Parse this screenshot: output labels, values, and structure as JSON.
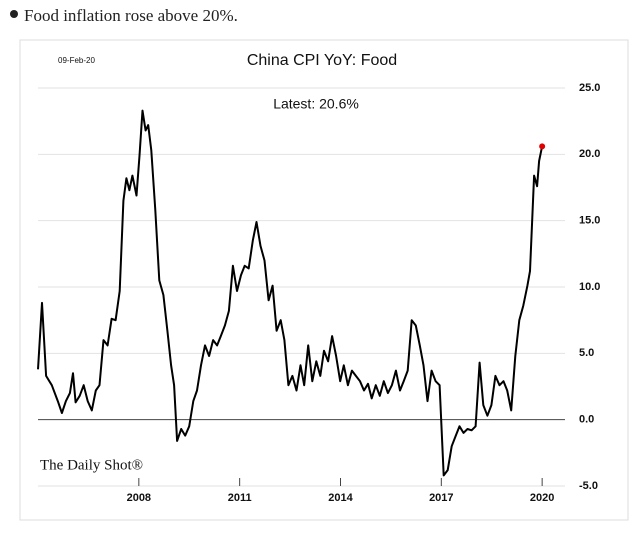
{
  "heading": "Food inflation rose above 20%.",
  "chart_data": {
    "type": "line",
    "title": "China CPI YoY: Food",
    "date_label": "09-Feb-20",
    "annotation": "Latest: 20.6%",
    "watermark": "The Daily Shot®",
    "xlim": [
      2005,
      2020.68
    ],
    "xticks": [
      2008,
      2011,
      2014,
      2017,
      2020
    ],
    "ylim": [
      -5,
      25
    ],
    "yticks": [
      {
        "value": 25,
        "label": "25.0"
      },
      {
        "value": 20,
        "label": "20.0"
      },
      {
        "value": 15,
        "label": "15.0"
      },
      {
        "value": 10,
        "label": "10.0"
      },
      {
        "value": 5,
        "label": "5.0"
      },
      {
        "value": 0,
        "label": "0.0"
      },
      {
        "value": -5,
        "label": "-5.0"
      }
    ],
    "y_axis_side": "right",
    "grid": true,
    "last_point_color": "#e00000",
    "x": [
      2005.0,
      2005.12,
      2005.24,
      2005.41,
      2005.59,
      2005.71,
      2005.83,
      2005.95,
      2006.04,
      2006.12,
      2006.24,
      2006.36,
      2006.48,
      2006.6,
      2006.72,
      2006.83,
      2006.95,
      2007.07,
      2007.19,
      2007.31,
      2007.43,
      2007.54,
      2007.63,
      2007.72,
      2007.81,
      2007.93,
      2008.02,
      2008.11,
      2008.2,
      2008.28,
      2008.37,
      2008.49,
      2008.61,
      2008.73,
      2008.85,
      2008.96,
      2009.05,
      2009.14,
      2009.26,
      2009.38,
      2009.5,
      2009.62,
      2009.73,
      2009.85,
      2009.97,
      2010.09,
      2010.21,
      2010.33,
      2010.44,
      2010.56,
      2010.68,
      2010.8,
      2010.92,
      2011.04,
      2011.15,
      2011.27,
      2011.39,
      2011.5,
      2011.62,
      2011.74,
      2011.86,
      2011.98,
      2012.1,
      2012.22,
      2012.33,
      2012.45,
      2012.57,
      2012.69,
      2012.81,
      2012.92,
      2013.04,
      2013.16,
      2013.28,
      2013.4,
      2013.51,
      2013.63,
      2013.75,
      2013.87,
      2013.99,
      2014.1,
      2014.22,
      2014.34,
      2014.46,
      2014.58,
      2014.7,
      2014.82,
      2014.93,
      2015.05,
      2015.17,
      2015.29,
      2015.41,
      2015.53,
      2015.65,
      2015.77,
      2015.88,
      2016.0,
      2016.12,
      2016.24,
      2016.36,
      2016.47,
      2016.59,
      2016.71,
      2016.83,
      2016.95,
      2017.07,
      2017.19,
      2017.31,
      2017.43,
      2017.54,
      2017.66,
      2017.78,
      2017.9,
      2018.02,
      2018.14,
      2018.25,
      2018.37,
      2018.49,
      2018.61,
      2018.73,
      2018.85,
      2018.96,
      2019.08,
      2019.2,
      2019.32,
      2019.44,
      2019.56,
      2019.64,
      2019.76,
      2019.85,
      2019.91,
      2020.0
    ],
    "series": [
      {
        "name": "China CPI YoY: Food",
        "color": "#000000",
        "values": [
          3.8,
          8.8,
          3.3,
          2.6,
          1.4,
          0.5,
          1.4,
          2.0,
          3.5,
          1.3,
          1.8,
          2.6,
          1.4,
          0.7,
          2.2,
          2.6,
          6.0,
          5.6,
          7.6,
          7.5,
          9.7,
          16.5,
          18.2,
          17.3,
          18.4,
          16.9,
          19.9,
          23.3,
          21.8,
          22.2,
          20.3,
          15.8,
          10.5,
          9.4,
          6.7,
          4.1,
          2.6,
          -1.6,
          -0.7,
          -1.2,
          -0.5,
          1.4,
          2.2,
          4.1,
          5.6,
          4.8,
          6.0,
          5.6,
          6.3,
          7.1,
          8.2,
          11.6,
          9.7,
          10.9,
          11.6,
          11.4,
          13.5,
          14.9,
          13.1,
          12.0,
          9.0,
          10.1,
          6.7,
          7.5,
          6.0,
          2.6,
          3.3,
          2.2,
          4.1,
          2.6,
          5.6,
          2.9,
          4.4,
          3.3,
          5.2,
          4.4,
          6.3,
          4.8,
          2.9,
          4.1,
          2.6,
          3.7,
          3.3,
          2.9,
          2.2,
          2.7,
          1.6,
          2.6,
          1.8,
          2.9,
          2.0,
          2.6,
          3.7,
          2.2,
          2.9,
          3.7,
          7.5,
          7.1,
          5.6,
          4.1,
          1.4,
          3.7,
          2.9,
          2.6,
          -4.2,
          -3.8,
          -2.0,
          -1.2,
          -0.5,
          -1.0,
          -0.7,
          -0.8,
          -0.5,
          4.3,
          1.1,
          0.3,
          1.1,
          3.3,
          2.6,
          2.9,
          2.2,
          0.7,
          4.8,
          7.5,
          8.6,
          10.1,
          11.2,
          18.4,
          17.6,
          19.5,
          20.6
        ]
      }
    ]
  }
}
